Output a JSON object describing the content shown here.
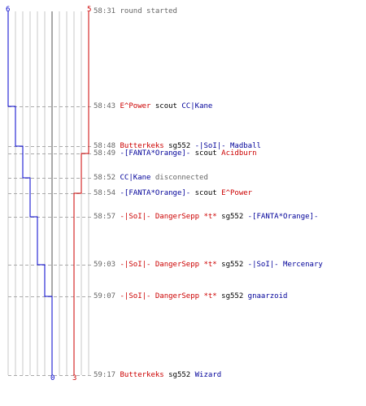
{
  "colors": {
    "red_team": "#cc0000",
    "blue_team": "#0000cc",
    "plain_text": "#666666",
    "grid": "#c8c8c8",
    "dash": "#aaaaaa"
  },
  "counts": {
    "blue_start": "6",
    "red_start": "5",
    "blue_end": "0",
    "red_end": "3"
  },
  "events": [
    {
      "time": "58:31",
      "parts": [
        {
          "text": "round started",
          "color": "plain"
        }
      ]
    },
    {
      "time": "58:43",
      "parts": [
        {
          "text": "E^Power",
          "color": "red"
        },
        {
          "text": " scout ",
          "color": "black"
        },
        {
          "text": "CC|Kane",
          "color": "blue"
        }
      ]
    },
    {
      "time": "58:48",
      "parts": [
        {
          "text": "Butterkeks",
          "color": "red"
        },
        {
          "text": " sg552 ",
          "color": "black"
        },
        {
          "text": "-|SoI|- Madball",
          "color": "blue"
        }
      ]
    },
    {
      "time": "58:49",
      "parts": [
        {
          "text": "-[FANTA*Orange]-",
          "color": "blue"
        },
        {
          "text": " scout ",
          "color": "black"
        },
        {
          "text": "Acidburn",
          "color": "red"
        }
      ]
    },
    {
      "time": "58:52",
      "parts": [
        {
          "text": "CC|Kane",
          "color": "blue"
        },
        {
          "text": " disconnected",
          "color": "plain"
        }
      ]
    },
    {
      "time": "58:54",
      "parts": [
        {
          "text": "-[FANTA*Orange]-",
          "color": "blue"
        },
        {
          "text": " scout ",
          "color": "black"
        },
        {
          "text": "E^Power",
          "color": "red"
        }
      ]
    },
    {
      "time": "58:57",
      "parts": [
        {
          "text": "-|SoI|- DangerSepp *t*",
          "color": "red"
        },
        {
          "text": " sg552 ",
          "color": "black"
        },
        {
          "text": "-[FANTA*Orange]-",
          "color": "blue"
        }
      ]
    },
    {
      "time": "59:03",
      "parts": [
        {
          "text": "-|SoI|- DangerSepp *t*",
          "color": "red"
        },
        {
          "text": " sg552 ",
          "color": "black"
        },
        {
          "text": "-|SoI|- Mercenary",
          "color": "blue"
        }
      ]
    },
    {
      "time": "59:07",
      "parts": [
        {
          "text": "-|SoI|- DangerSepp *t*",
          "color": "red"
        },
        {
          "text": " sg552 ",
          "color": "black"
        },
        {
          "text": "gnaarzoid",
          "color": "blue"
        }
      ]
    },
    {
      "time": "59:17",
      "parts": [
        {
          "text": "Butterkeks",
          "color": "red"
        },
        {
          "text": " sg552 ",
          "color": "black"
        },
        {
          "text": "Wizard",
          "color": "blue"
        }
      ]
    }
  ]
}
